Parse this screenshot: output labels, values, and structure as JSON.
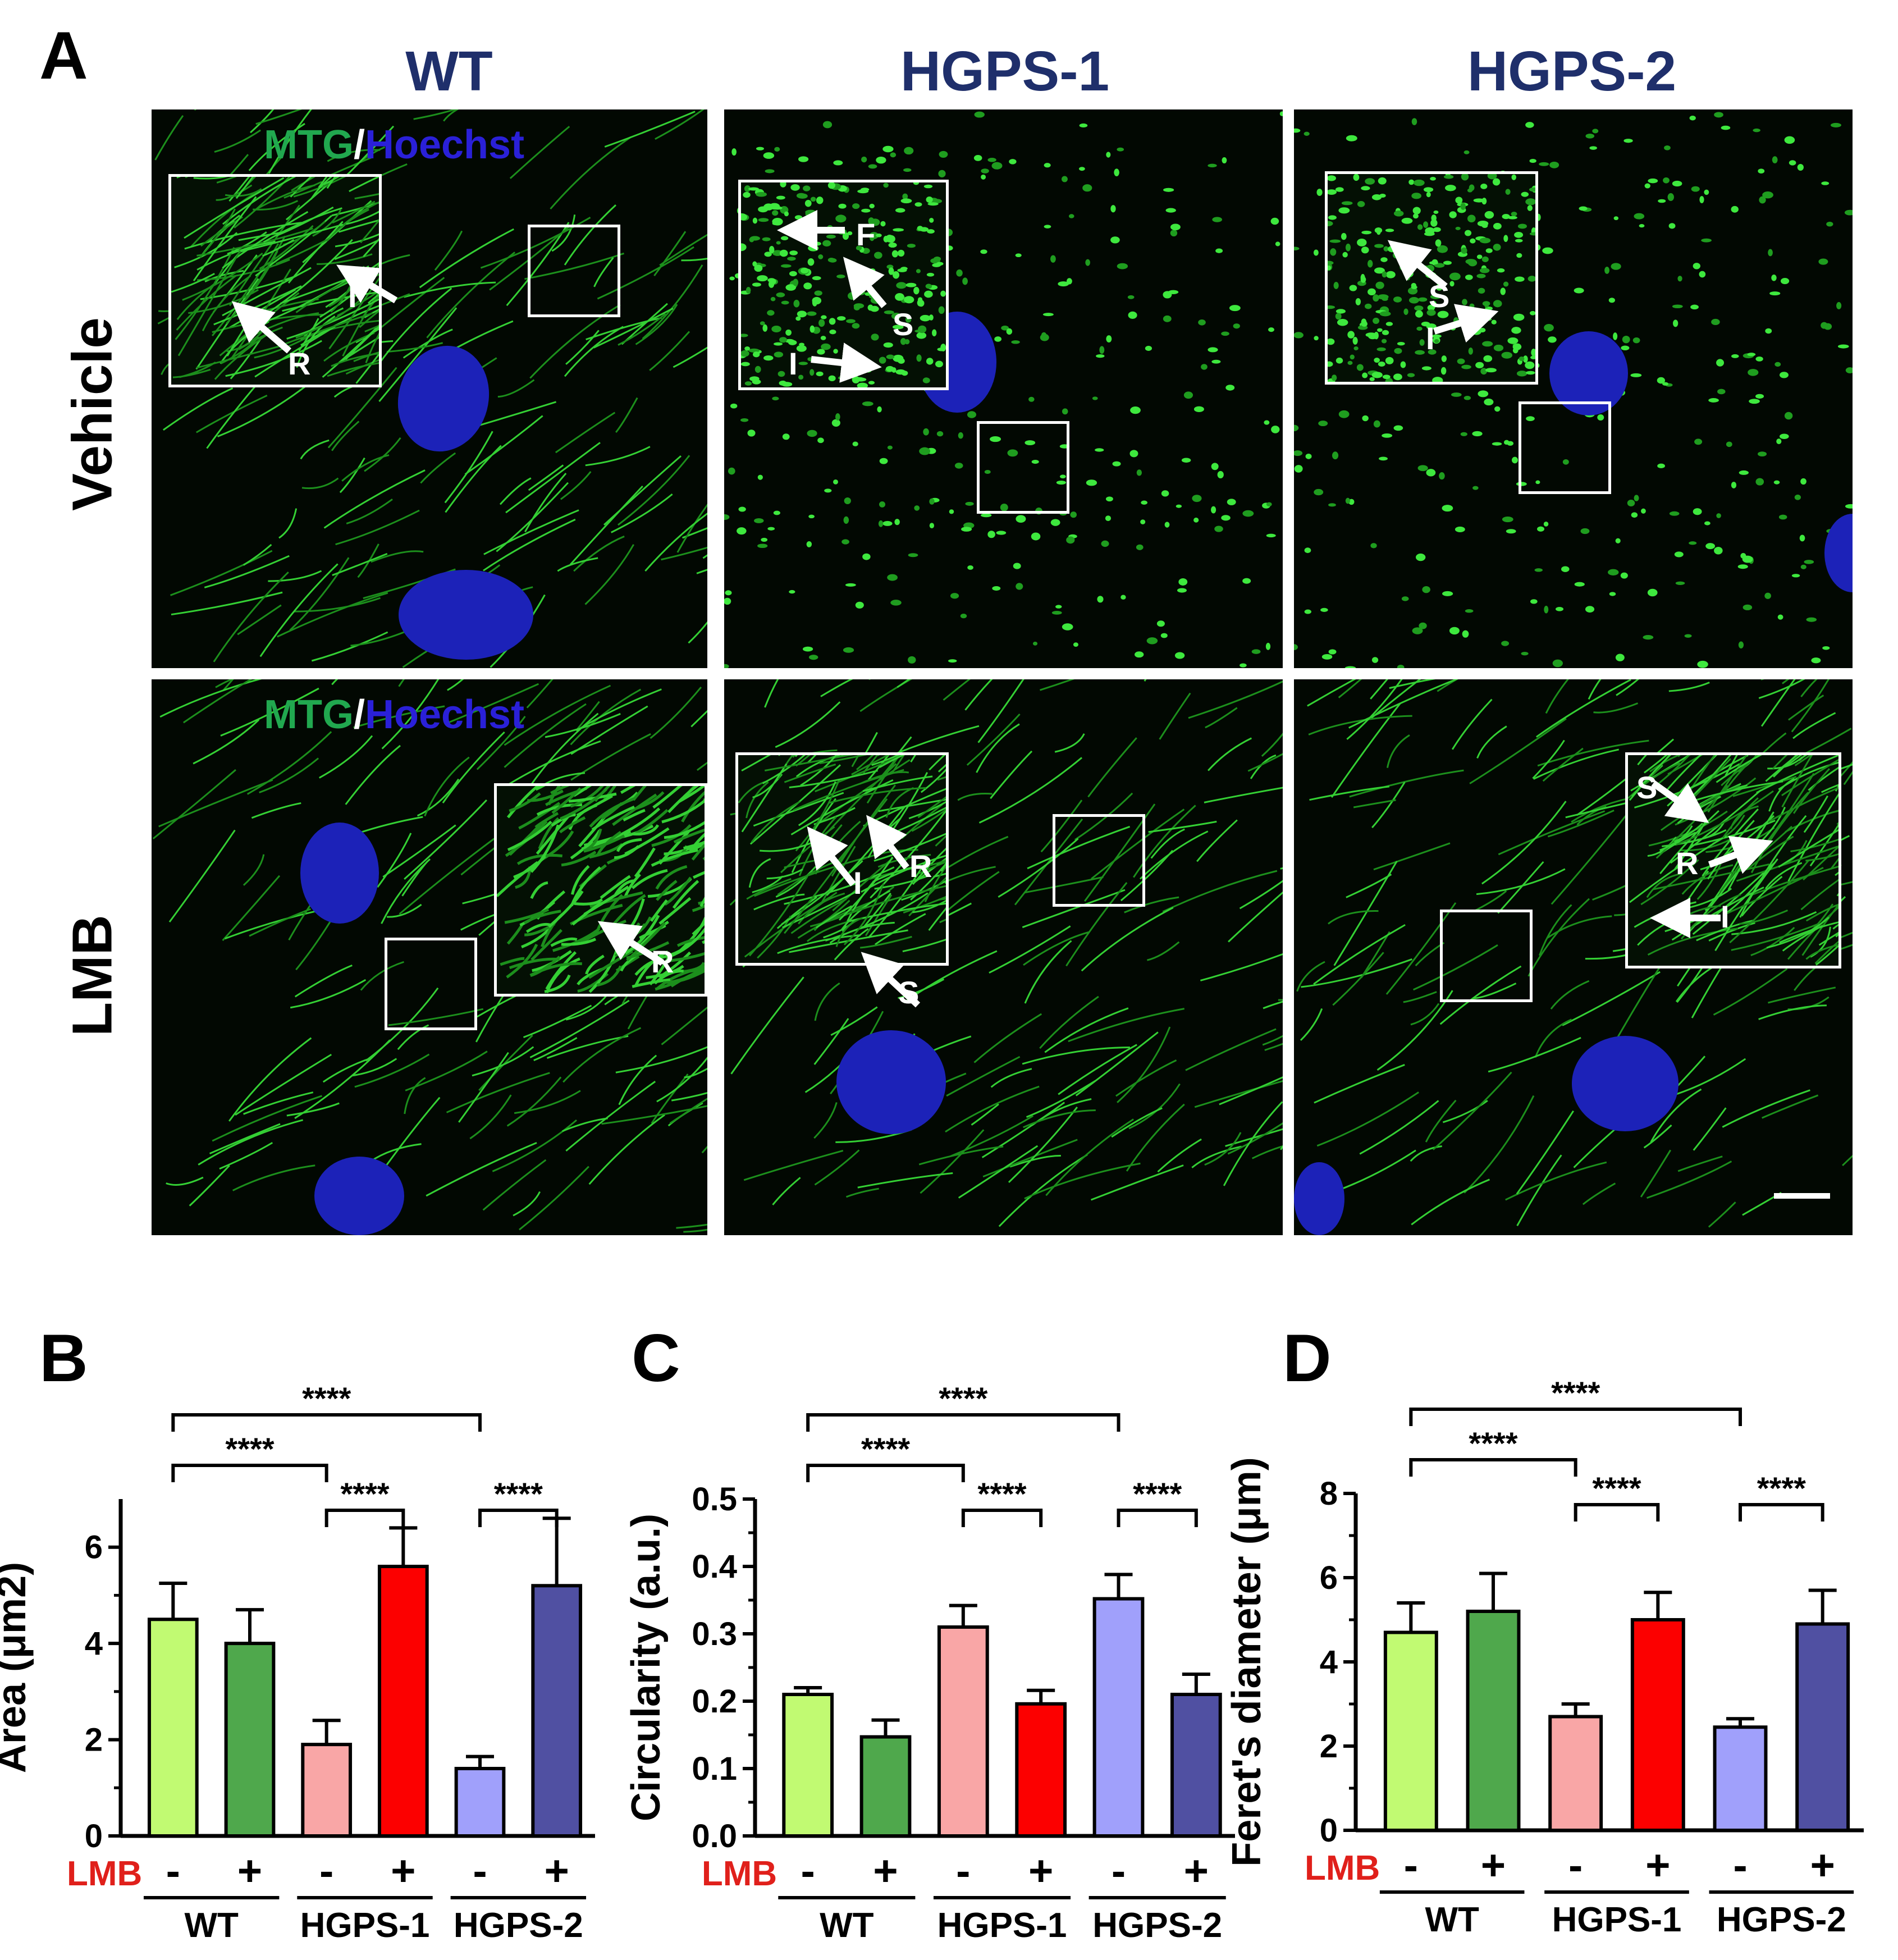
{
  "figure": {
    "panel_letters": [
      "A",
      "B",
      "C",
      "D"
    ],
    "columns": [
      "WT",
      "HGPS-1",
      "HGPS-2"
    ],
    "rows": [
      "Vehicle",
      "LMB"
    ],
    "stain_green": "MTG",
    "stain_sep": "/",
    "stain_blue": "Hoechst",
    "colors": {
      "column_title": "#1f2f6b",
      "mtg": "#21a84f",
      "hoechst": "#2a20d8",
      "lmb": "#e0201b"
    },
    "annotations": {
      "vehicle_wt": [
        "I",
        "R"
      ],
      "vehicle_hgps1": [
        "F",
        "S",
        "I"
      ],
      "vehicle_hgps2": [
        "S",
        "I"
      ],
      "lmb_wt": [
        "R"
      ],
      "lmb_hgps1": [
        "I",
        "R",
        "S"
      ],
      "lmb_hgps2": [
        "S",
        "R",
        "I"
      ]
    }
  },
  "charts_common": {
    "lmb_label": "LMB",
    "treatment_labels": [
      "-",
      "+",
      "-",
      "+",
      "-",
      "+"
    ],
    "group_labels": [
      "WT",
      "HGPS-1",
      "HGPS-2"
    ],
    "significance": "****",
    "bar_colors": [
      "#c1fa72",
      "#4fa84c",
      "#f9a6a6",
      "#fc0000",
      "#a0a0fb",
      "#5050a2"
    ]
  },
  "chart_data": [
    {
      "type": "bar",
      "panel": "B",
      "ylabel": "Area (μm2)",
      "ylim": [
        0,
        7
      ],
      "yticks": [
        0,
        2,
        4,
        6
      ],
      "categories": [
        "WT -",
        "WT +",
        "HGPS-1 -",
        "HGPS-1 +",
        "HGPS-2 -",
        "HGPS-2 +"
      ],
      "values": [
        4.5,
        4.0,
        1.9,
        5.6,
        1.4,
        5.2
      ],
      "errors": [
        0.75,
        0.7,
        0.5,
        0.8,
        0.25,
        1.4
      ]
    },
    {
      "type": "bar",
      "panel": "C",
      "ylabel": "Circularity (a.u.)",
      "ylim": [
        0,
        0.5
      ],
      "yticks": [
        0.0,
        0.1,
        0.2,
        0.3,
        0.4,
        0.5
      ],
      "categories": [
        "WT -",
        "WT +",
        "HGPS-1 -",
        "HGPS-1 +",
        "HGPS-2 -",
        "HGPS-2 +"
      ],
      "values": [
        0.21,
        0.147,
        0.31,
        0.196,
        0.352,
        0.21
      ],
      "errors": [
        0.01,
        0.025,
        0.032,
        0.02,
        0.036,
        0.03
      ]
    },
    {
      "type": "bar",
      "panel": "D",
      "ylabel": "Feret's diameter (μm)",
      "ylim": [
        0,
        8
      ],
      "yticks": [
        0,
        2,
        4,
        6,
        8
      ],
      "categories": [
        "WT -",
        "WT +",
        "HGPS-1 -",
        "HGPS-1 +",
        "HGPS-2 -",
        "HGPS-2 +"
      ],
      "values": [
        4.7,
        5.2,
        2.7,
        5.0,
        2.45,
        4.9
      ],
      "errors": [
        0.7,
        0.9,
        0.3,
        0.65,
        0.2,
        0.8
      ]
    }
  ]
}
